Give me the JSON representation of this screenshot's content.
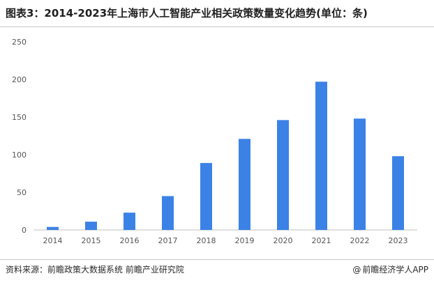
{
  "header": {
    "title": "图表3：2014-2023年上海市人工智能产业相关政策数量变化趋势(单位：条)"
  },
  "footer": {
    "source": "资料来源：前瞻政策大数据系统 前瞻产业研究院",
    "brand_at": "@",
    "brand": "前瞻经济学人APP"
  },
  "chart_data": {
    "type": "bar",
    "title": "图表3：2014-2023年上海市人工智能产业相关政策数量变化趋势(单位：条)",
    "xlabel": "",
    "ylabel": "",
    "categories": [
      "2014",
      "2015",
      "2016",
      "2017",
      "2018",
      "2019",
      "2020",
      "2021",
      "2022",
      "2023"
    ],
    "values": [
      4,
      11,
      23,
      45,
      89,
      121,
      146,
      197,
      148,
      98
    ],
    "ylim": [
      0,
      250
    ],
    "yticks": [
      0,
      50,
      100,
      150,
      200,
      250
    ],
    "bar_color": "#3b82e6",
    "grid": false,
    "legend": "none"
  }
}
